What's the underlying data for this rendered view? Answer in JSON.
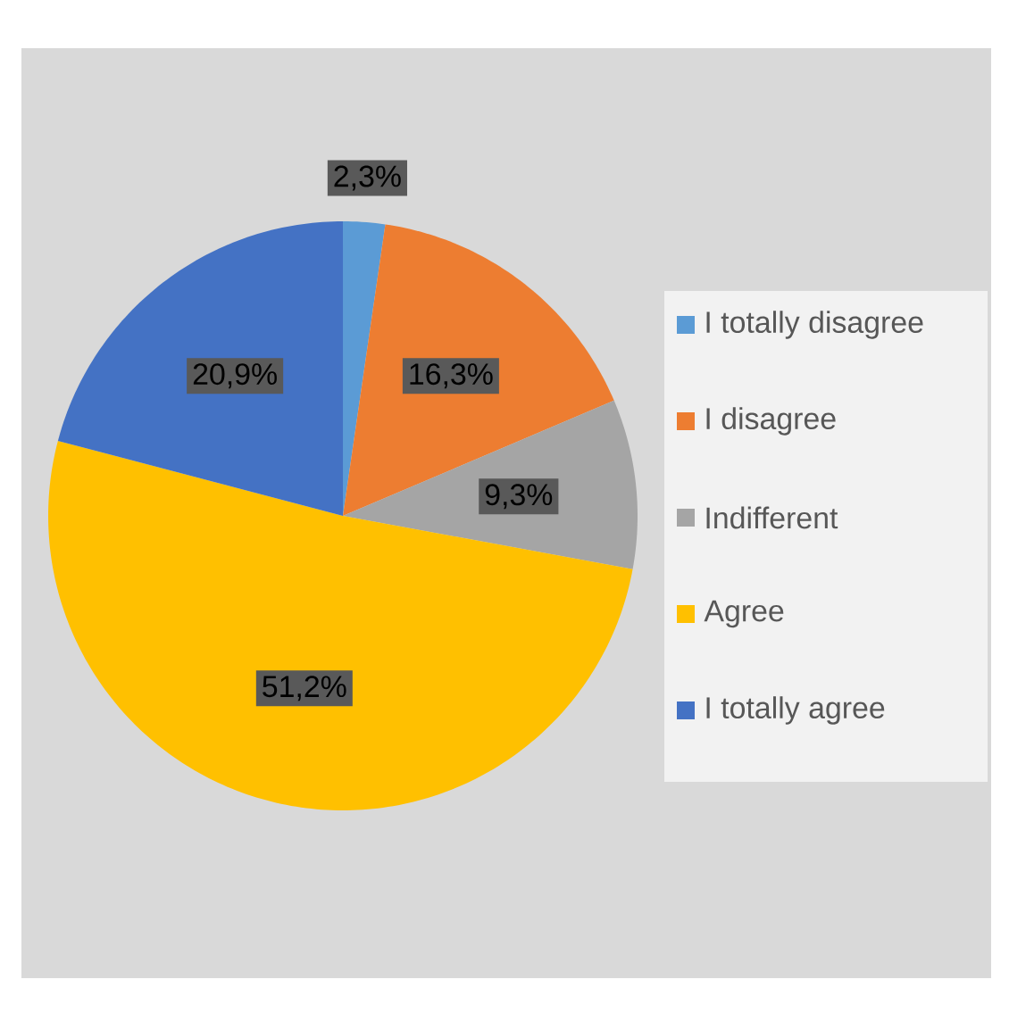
{
  "chart_data": {
    "type": "pie",
    "categories": [
      "I totally disagree",
      "I disagree",
      "Indifferent",
      "Agree",
      "I totally agree"
    ],
    "values": [
      2.3,
      16.3,
      9.3,
      51.2,
      20.9
    ],
    "colors": [
      "#5b9bd5",
      "#ed7d31",
      "#a5a5a5",
      "#ffc000",
      "#4472c4"
    ],
    "value_labels": [
      "2,3%",
      "16,3%",
      "9,3%",
      "51,2%",
      "20,9%"
    ],
    "legend": "right"
  }
}
